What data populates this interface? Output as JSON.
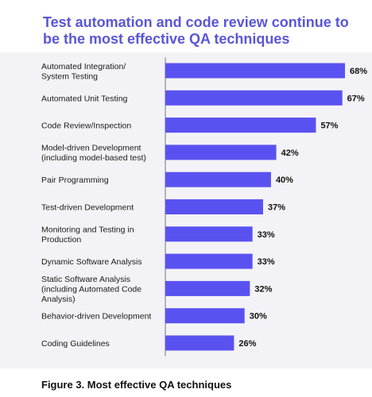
{
  "title": "Test automation and code review continue to be the most effective QA techniques",
  "caption": "Figure 3. Most effective QA techniques",
  "colors": {
    "bar": "#5a52f0",
    "axis": "#777777",
    "title": "#5a56d6",
    "panel": "#f3f3f7"
  },
  "chart_data": {
    "type": "bar",
    "orientation": "horizontal",
    "title": "Test automation and code review continue to be the most effective QA techniques",
    "categories": [
      "Automated Integration/\nSystem Testing",
      "Automated Unit Testing",
      "Code Review/Inspection",
      "Model-driven Development\n(including model-based test)",
      "Pair Programming",
      "Test-driven Development",
      "Monitoring and Testing in\nProduction",
      "Dynamic Software Analysis",
      "Static Software Analysis\n(including Automated Code\nAnalysis)",
      "Behavior-driven Development",
      "Coding Guidelines"
    ],
    "values": [
      68,
      67,
      57,
      42,
      40,
      37,
      33,
      33,
      32,
      30,
      26
    ],
    "value_labels": [
      "68%",
      "67%",
      "57%",
      "42%",
      "40%",
      "37%",
      "33%",
      "33%",
      "32%",
      "30%",
      "26%"
    ],
    "xlim": [
      0,
      68
    ],
    "grid": false
  }
}
